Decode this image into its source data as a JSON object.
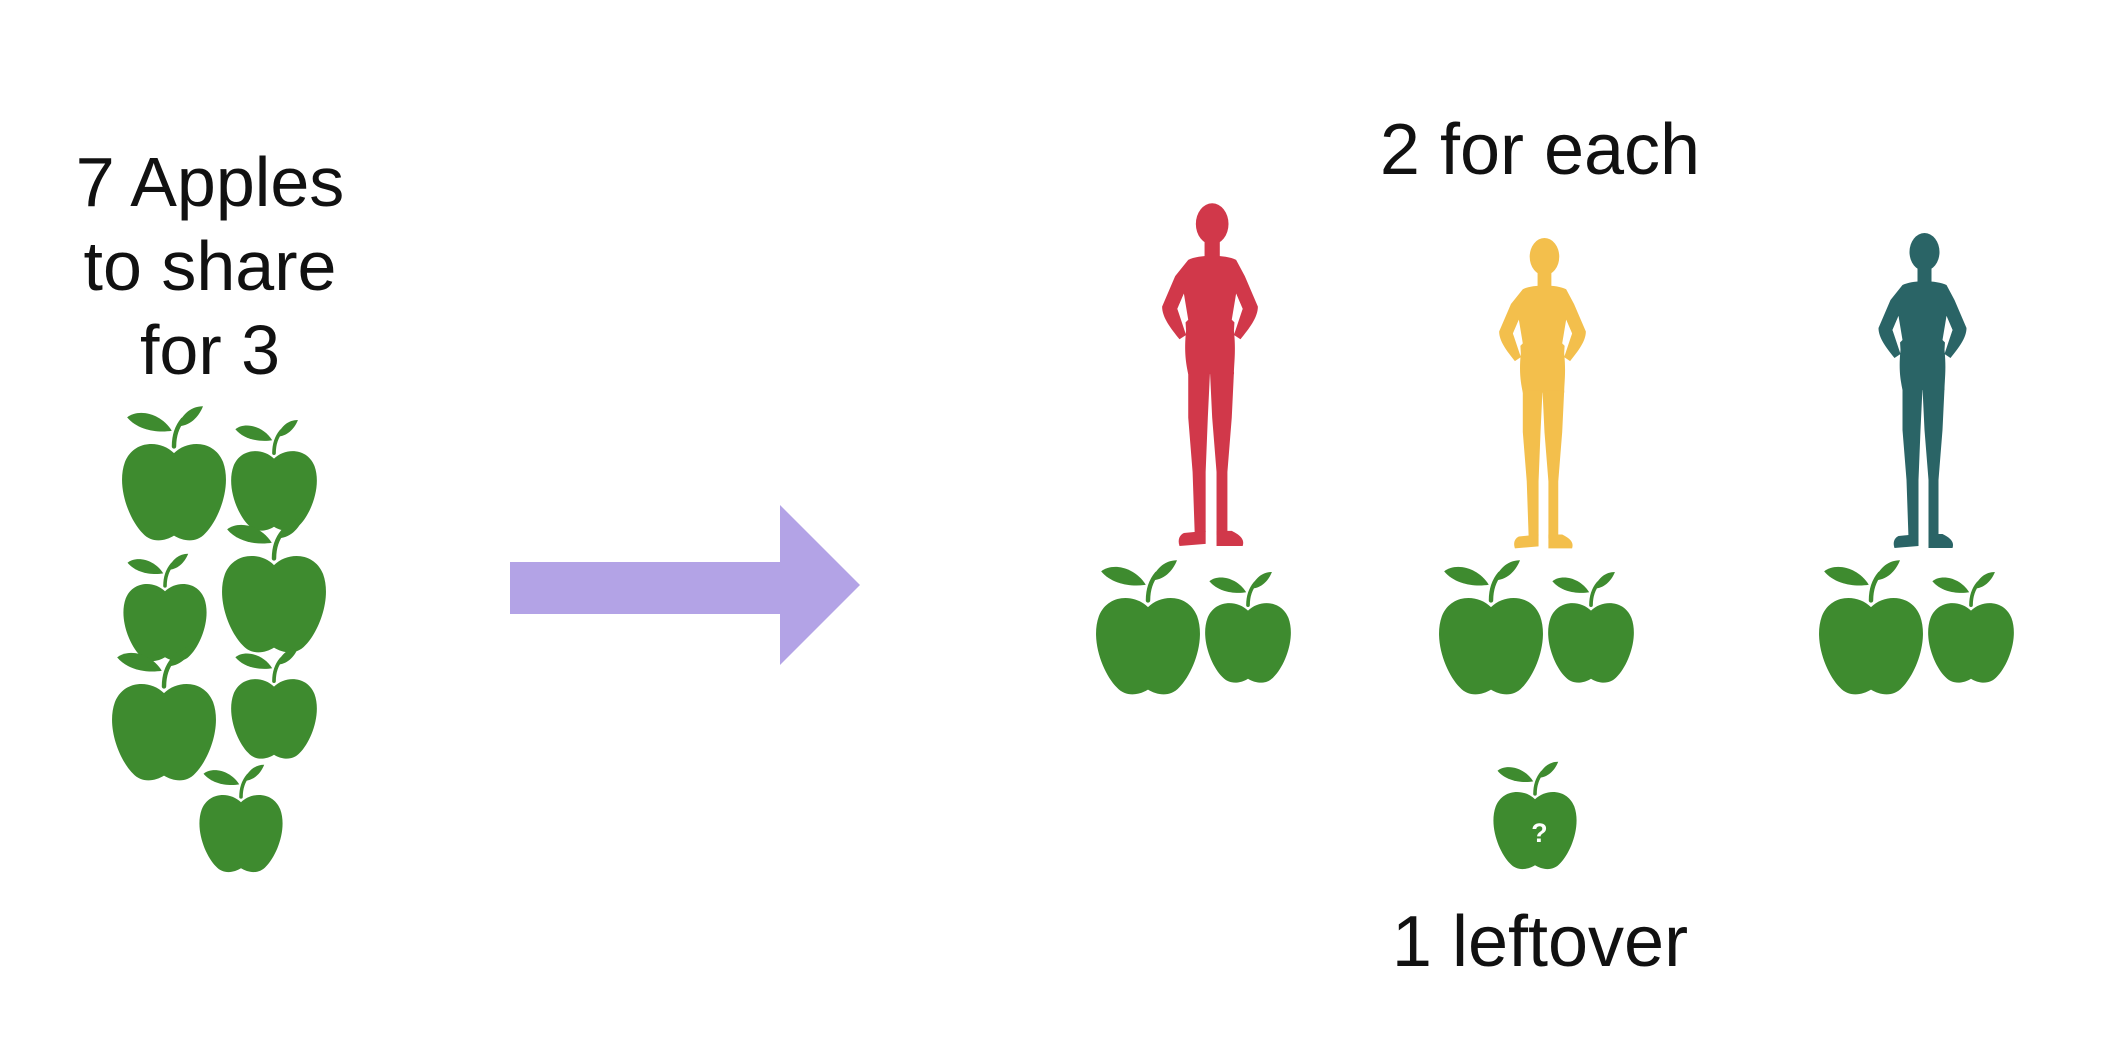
{
  "title": {
    "line1": "7 Apples",
    "line2": "to share",
    "line3": "for 3"
  },
  "per_person_label": "2 for each",
  "leftover_label": "1 leftover",
  "leftover_mark": "?",
  "icons": {
    "apple": "apple-icon",
    "person": "person-silhouette-icon",
    "arrow": "right-arrow-icon"
  },
  "colors": {
    "apple": "#3e8b2f",
    "arrow": "#b3a3e6",
    "person_1": "#d1384a",
    "person_2": "#f3bf4c",
    "person_3": "#2a6466",
    "text": "#111111"
  }
}
